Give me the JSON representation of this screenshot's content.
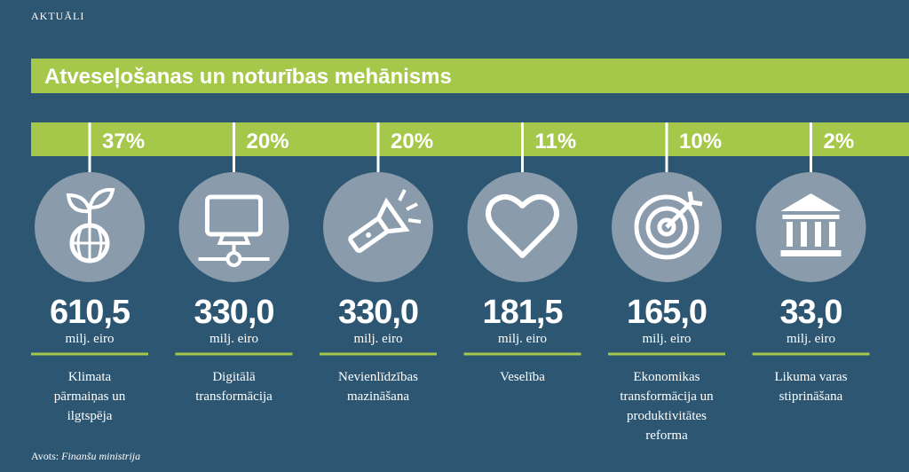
{
  "header": {
    "section": "AKTUĀLI",
    "title": "Atveseļošanas un noturības mehānisms"
  },
  "items": [
    {
      "percent": "37%",
      "amount": "610,5",
      "unit": "milj. eiro",
      "label": [
        "Klimata",
        "pārmaiņas un",
        "ilgtspēja"
      ]
    },
    {
      "percent": "20%",
      "amount": "330,0",
      "unit": "milj. eiro",
      "label": [
        "Digitālā",
        "transformācija"
      ]
    },
    {
      "percent": "20%",
      "amount": "330,0",
      "unit": "milj. eiro",
      "label": [
        "Nevienlīdzības",
        "mazināšana"
      ]
    },
    {
      "percent": "11%",
      "amount": "181,5",
      "unit": "milj. eiro",
      "label": [
        "Veselība"
      ]
    },
    {
      "percent": "10%",
      "amount": "165,0",
      "unit": "milj. eiro",
      "label": [
        "Ekonomikas",
        "transformācija un",
        "produktivitātes",
        "reforma"
      ]
    },
    {
      "percent": "2%",
      "amount": "33,0",
      "unit": "milj. eiro",
      "label": [
        "Likuma varas",
        "stiprināšana"
      ]
    }
  ],
  "source": {
    "prefix": "Avots:",
    "name": "Finanšu ministrija"
  }
}
